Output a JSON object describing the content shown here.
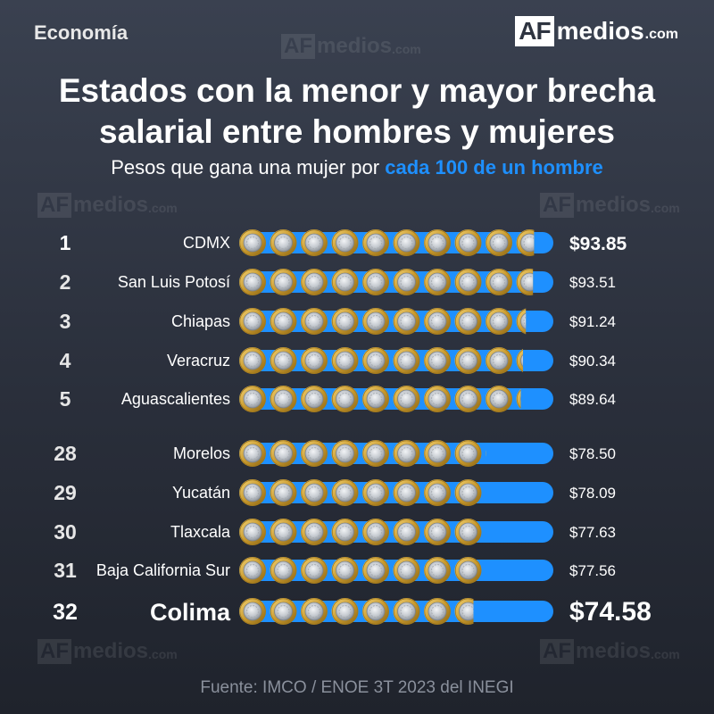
{
  "header": {
    "section": "Economía",
    "logo_af": "AF",
    "logo_medios": "medios",
    "logo_com": ".com",
    "title_line1": "Estados con la menor y mayor brecha",
    "title_line2": "salarial entre hombres y mujeres",
    "subtitle_prefix": "Pesos que gana una mujer por ",
    "subtitle_highlight": "cada 100 de un hombre"
  },
  "source": "Fuente: IMCO / ENOE 3T 2023 del INEGI",
  "colors": {
    "bar": "#1e90ff",
    "coin_gold": "#d8b24a",
    "coin_silver": "#c7ccd2",
    "text_muted": "#8a909c"
  },
  "chart_data": {
    "type": "bar",
    "orientation": "horizontal",
    "title": "Estados con la menor y mayor brecha salarial entre hombres y mujeres",
    "subtitle": "Pesos que gana una mujer por cada 100 de un hombre",
    "xlim": [
      0,
      100
    ],
    "grid": false,
    "legend": "none",
    "categories": [
      "CDMX",
      "San Luis Potosí",
      "Chiapas",
      "Veracruz",
      "Aguascalientes",
      "Morelos",
      "Yucatán",
      "Tlaxcala",
      "Baja California Sur",
      "Colima"
    ],
    "ranks": [
      "1",
      "2",
      "3",
      "4",
      "5",
      "28",
      "29",
      "30",
      "31",
      "32"
    ],
    "values": [
      93.85,
      93.51,
      91.24,
      90.34,
      89.64,
      78.5,
      78.09,
      77.63,
      77.56,
      74.58
    ],
    "labels": [
      "$93.85",
      "$93.51",
      "$91.24",
      "$90.34",
      "$89.64",
      "$78.50",
      "$78.09",
      "$77.63",
      "$77.56",
      "$74.58"
    ]
  }
}
